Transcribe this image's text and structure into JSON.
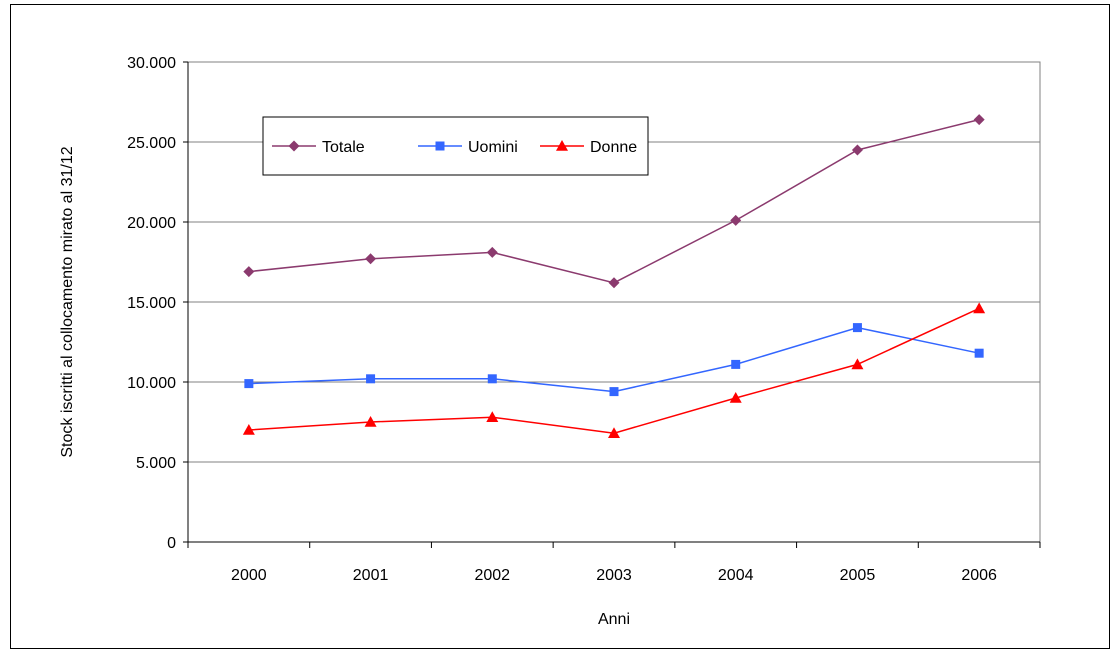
{
  "chart_data": {
    "type": "line",
    "title": "",
    "xlabel": "Anni",
    "ylabel": "Stock iscritti al collocamento mirato al 31/12",
    "categories": [
      "2000",
      "2001",
      "2002",
      "2003",
      "2004",
      "2005",
      "2006"
    ],
    "ylim": [
      0,
      30000
    ],
    "yticks": [
      "0",
      "5.000",
      "10.000",
      "15.000",
      "20.000",
      "25.000",
      "30.000"
    ],
    "grid": true,
    "legend_position": "top-left",
    "series": [
      {
        "name": "Totale",
        "color": "#8B3A6E",
        "marker": "diamond",
        "values": [
          16900,
          17700,
          18100,
          16200,
          20100,
          24500,
          26400
        ]
      },
      {
        "name": "Uomini",
        "color": "#3366FF",
        "marker": "square",
        "values": [
          9900,
          10200,
          10200,
          9400,
          11100,
          13400,
          11800
        ]
      },
      {
        "name": "Donne",
        "color": "#FF0000",
        "marker": "triangle",
        "values": [
          7000,
          7500,
          7800,
          6800,
          9000,
          11100,
          14600
        ]
      }
    ]
  }
}
